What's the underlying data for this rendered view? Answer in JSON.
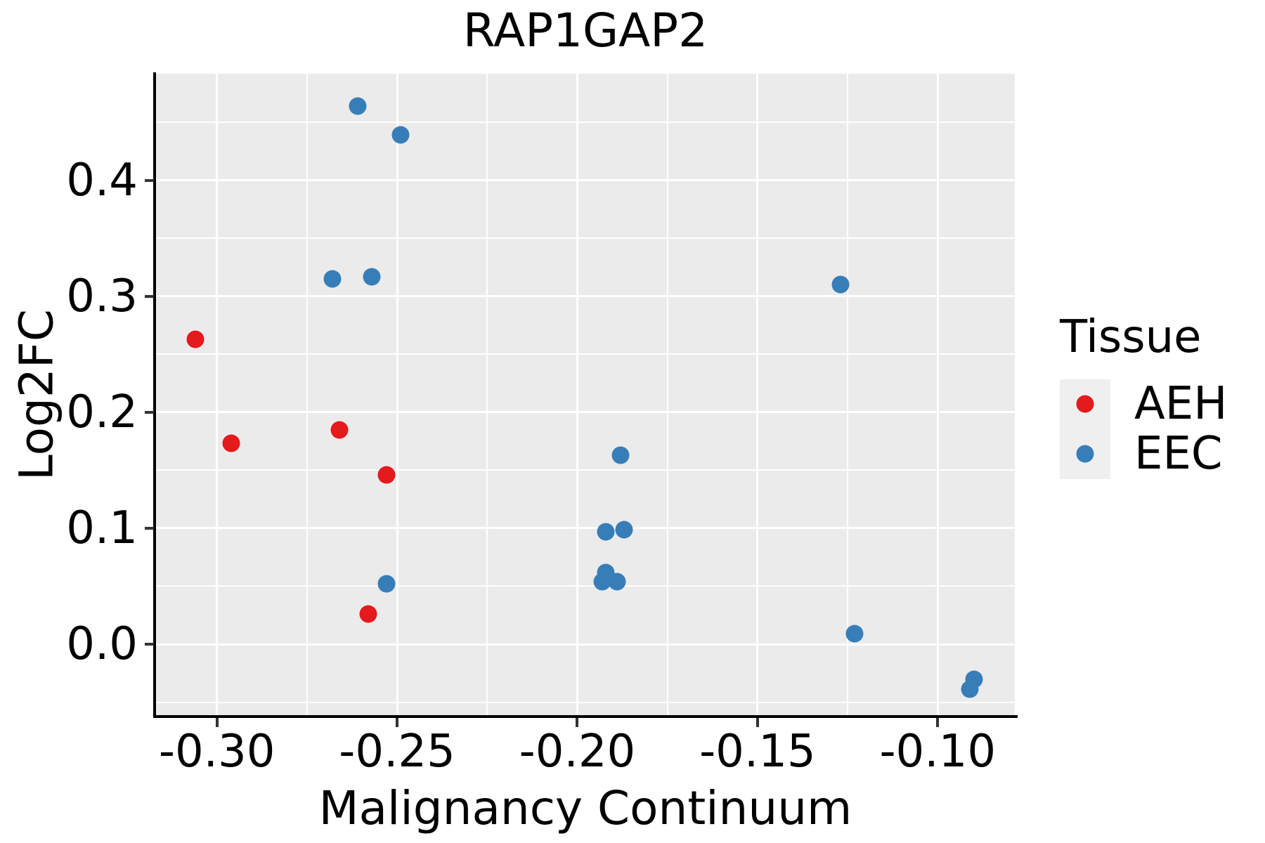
{
  "figure": {
    "title": "RAP1GAP2",
    "x_axis_label": "Malignancy Continuum",
    "y_axis_label": "Log2FC",
    "legend": {
      "title": "Tissue",
      "entries": [
        {
          "label": "AEH",
          "color": "#E41A1C"
        },
        {
          "label": "EEC",
          "color": "#377EB8"
        }
      ]
    },
    "colors": {
      "plot_background": "#EBEBEB",
      "gridline": "#FFFFFF",
      "axis_line": "#000000",
      "legend_key_background": "#EFEFEF",
      "aeh_red": "#E41A1C",
      "eec_blue": "#377EB8"
    }
  },
  "chart_data": {
    "type": "scatter",
    "title": "RAP1GAP2",
    "xlabel": "Malignancy Continuum",
    "ylabel": "Log2FC",
    "legend_title": "Tissue",
    "legend_position": "right",
    "grid": "on",
    "xlim": [
      -0.3169,
      -0.0786
    ],
    "ylim": [
      -0.0624,
      0.492
    ],
    "x_ticks": [
      {
        "value": -0.3,
        "label": "-0.30"
      },
      {
        "value": -0.25,
        "label": "-0.25"
      },
      {
        "value": -0.2,
        "label": "-0.20"
      },
      {
        "value": -0.15,
        "label": "-0.15"
      },
      {
        "value": -0.1,
        "label": "-0.10"
      }
    ],
    "x_minor_ticks": [
      -0.275,
      -0.225,
      -0.175,
      -0.125
    ],
    "y_ticks": [
      {
        "value": 0.4,
        "label": "0.4"
      },
      {
        "value": 0.3,
        "label": "0.3"
      },
      {
        "value": 0.2,
        "label": "0.2"
      },
      {
        "value": 0.1,
        "label": "0.1"
      },
      {
        "value": 0.0,
        "label": "0.0"
      }
    ],
    "y_minor_ticks": [
      0.45,
      0.35,
      0.25,
      0.15,
      0.05,
      -0.05
    ],
    "series": [
      {
        "name": "AEH",
        "color": "#E41A1C",
        "points": [
          [
            -0.306,
            0.263
          ],
          [
            -0.296,
            0.173
          ],
          [
            -0.266,
            0.185
          ],
          [
            -0.253,
            0.146
          ],
          [
            -0.258,
            0.026
          ]
        ]
      },
      {
        "name": "EEC",
        "color": "#377EB8",
        "points": [
          [
            -0.261,
            0.464
          ],
          [
            -0.249,
            0.439
          ],
          [
            -0.268,
            0.315
          ],
          [
            -0.257,
            0.317
          ],
          [
            -0.127,
            0.31
          ],
          [
            -0.188,
            0.163
          ],
          [
            -0.192,
            0.097
          ],
          [
            -0.187,
            0.099
          ],
          [
            -0.192,
            0.062
          ],
          [
            -0.193,
            0.054
          ],
          [
            -0.189,
            0.054
          ],
          [
            -0.253,
            0.052
          ],
          [
            -0.123,
            0.009
          ],
          [
            -0.091,
            -0.039
          ],
          [
            -0.09,
            -0.03
          ]
        ]
      }
    ]
  }
}
